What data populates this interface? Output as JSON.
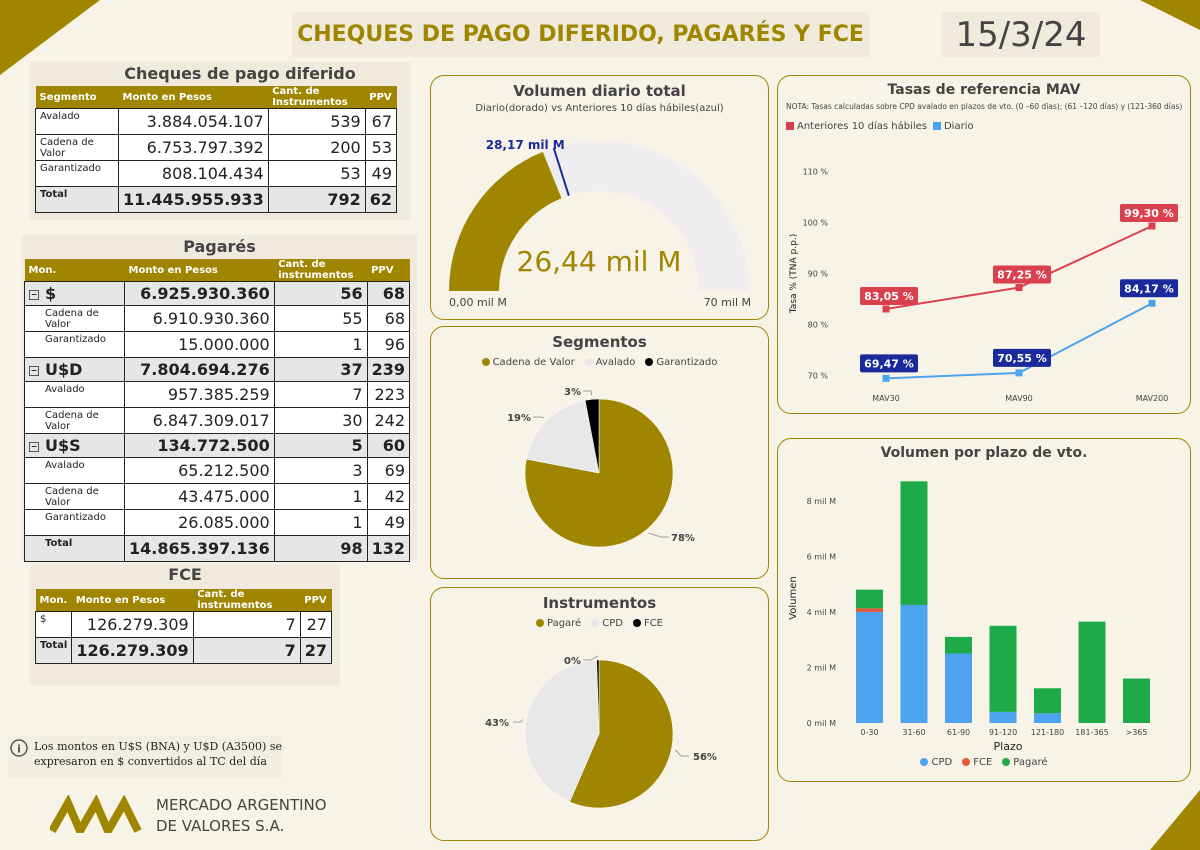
{
  "header": {
    "title": "CHEQUES DE PAGO DIFERIDO, PAGARÉS Y FCE",
    "date": "15/3/24"
  },
  "cpd": {
    "title": "Cheques de pago diferido",
    "columns": [
      "Segmento",
      "Monto en Pesos",
      "Cant. de Instrumentos",
      "PPV"
    ],
    "rows": [
      {
        "label": "Avalado",
        "monto": "3.884.054.107",
        "cant": "539",
        "ppv": "67"
      },
      {
        "label": "Cadena de Valor",
        "monto": "6.753.797.392",
        "cant": "200",
        "ppv": "53"
      },
      {
        "label": "Garantizado",
        "monto": "808.104.434",
        "cant": "53",
        "ppv": "49"
      }
    ],
    "total": {
      "label": "Total",
      "monto": "11.445.955.933",
      "cant": "792",
      "ppv": "62"
    }
  },
  "pagares": {
    "title": "Pagarés",
    "columns": [
      "Mon.",
      "Monto en Pesos",
      "Cant. de instrumentos",
      "PPV"
    ],
    "groups": [
      {
        "label": "$",
        "monto": "6.925.930.360",
        "cant": "56",
        "ppv": "68",
        "rows": [
          {
            "label": "Cadena de Valor",
            "monto": "6.910.930.360",
            "cant": "55",
            "ppv": "68"
          },
          {
            "label": "Garantizado",
            "monto": "15.000.000",
            "cant": "1",
            "ppv": "96"
          }
        ]
      },
      {
        "label": "U$D",
        "monto": "7.804.694.276",
        "cant": "37",
        "ppv": "239",
        "rows": [
          {
            "label": "Avalado",
            "monto": "957.385.259",
            "cant": "7",
            "ppv": "223"
          },
          {
            "label": "Cadena de Valor",
            "monto": "6.847.309.017",
            "cant": "30",
            "ppv": "242"
          }
        ]
      },
      {
        "label": "U$S",
        "monto": "134.772.500",
        "cant": "5",
        "ppv": "60",
        "rows": [
          {
            "label": "Avalado",
            "monto": "65.212.500",
            "cant": "3",
            "ppv": "69"
          },
          {
            "label": "Cadena de Valor",
            "monto": "43.475.000",
            "cant": "1",
            "ppv": "42"
          },
          {
            "label": "Garantizado",
            "monto": "26.085.000",
            "cant": "1",
            "ppv": "49"
          }
        ]
      }
    ],
    "total": {
      "label": "Total",
      "monto": "14.865.397.136",
      "cant": "98",
      "ppv": "132"
    }
  },
  "fce": {
    "title": "FCE",
    "columns": [
      "Mon.",
      "Monto en Pesos",
      "Cant. de instrumentos",
      "PPV"
    ],
    "rows": [
      {
        "label": "$",
        "monto": "126.279.309",
        "cant": "7",
        "ppv": "27"
      }
    ],
    "total": {
      "label": "Total",
      "monto": "126.279.309",
      "cant": "7",
      "ppv": "27"
    }
  },
  "note": {
    "line1": "Los montos en U$S (BNA) y U$D (A3500) se",
    "line2": "expresaron en $ convertidos al TC del día"
  },
  "logo": {
    "line1": "MERCADO ARGENTINO",
    "line2": "DE VALORES S.A."
  },
  "colors": {
    "gold": "#a08600",
    "blue": "#4da3f0",
    "red": "#d9414f",
    "green": "#1faa49",
    "fce": "#e05a3a",
    "gray": "#e8e8e8",
    "black": "#000000"
  },
  "chart_data": [
    {
      "type": "gauge",
      "title": "Volumen diario total",
      "subtitle": "Diario(dorado) vs Anteriores 10 días hábiles(azul)",
      "value": 26.44,
      "value_label": "26,44 mil M",
      "target": 28.17,
      "target_label": "28,17 mil M",
      "min": 0,
      "max": 70,
      "min_label": "0,00 mil M",
      "max_label": "70 mil M"
    },
    {
      "type": "pie",
      "title": "Segmentos",
      "labels": [
        "Cadena de Valor",
        "Avalado",
        "Garantizado"
      ],
      "values": [
        78,
        19,
        3
      ],
      "value_labels": [
        "78%",
        "19%",
        "3%"
      ]
    },
    {
      "type": "pie",
      "title": "Instrumentos",
      "labels": [
        "Pagaré",
        "CPD",
        "FCE"
      ],
      "values": [
        56.5,
        43,
        0.5
      ],
      "value_labels": [
        "56%",
        "43%",
        "0%"
      ]
    },
    {
      "type": "line",
      "title": "Tasas de referencia MAV",
      "note": "NOTA: Tasas calculadas sobre CPD avalado en plazos de vto. (0 –60 días); (61 –120 días) y (121-360 días)",
      "categories": [
        "MAV30",
        "MAV90",
        "MAV200"
      ],
      "ylabel": "Tasa % (TNA p.p.)",
      "ylim": [
        67,
        113
      ],
      "yticks": [
        70,
        80,
        90,
        100,
        110
      ],
      "ytick_labels": [
        "70 %",
        "80 %",
        "90 %",
        "100 %",
        "110 %"
      ],
      "series": [
        {
          "name": "Anteriores 10 días hábiles",
          "values": [
            83.05,
            87.25,
            99.3
          ],
          "labels": [
            "83,05 %",
            "87,25 %",
            "99,30 %"
          ]
        },
        {
          "name": "Diario",
          "values": [
            69.47,
            70.55,
            84.17
          ],
          "labels": [
            "69,47 %",
            "70,55 %",
            "84,17 %"
          ]
        }
      ]
    },
    {
      "type": "bar",
      "stacked": true,
      "title": "Volumen por plazo de vto.",
      "xlabel": "Plazo",
      "ylabel": "Volumen",
      "categories": [
        "0-30",
        "31-60",
        "61-90",
        "91-120",
        "121-180",
        "181-365",
        ">365"
      ],
      "ylim": [
        0,
        9
      ],
      "yticks": [
        0,
        2,
        4,
        6,
        8
      ],
      "ytick_labels": [
        "0 mil M",
        "2 mil M",
        "4 mil M",
        "6 mil M",
        "8 mil M"
      ],
      "series": [
        {
          "name": "CPD",
          "values": [
            4.0,
            4.25,
            2.5,
            0.4,
            0.35,
            0,
            0
          ]
        },
        {
          "name": "FCE",
          "values": [
            0.13,
            0,
            0,
            0,
            0,
            0,
            0
          ]
        },
        {
          "name": "Pagaré",
          "values": [
            0.67,
            4.45,
            0.6,
            3.1,
            0.9,
            3.65,
            1.6
          ]
        }
      ]
    }
  ]
}
